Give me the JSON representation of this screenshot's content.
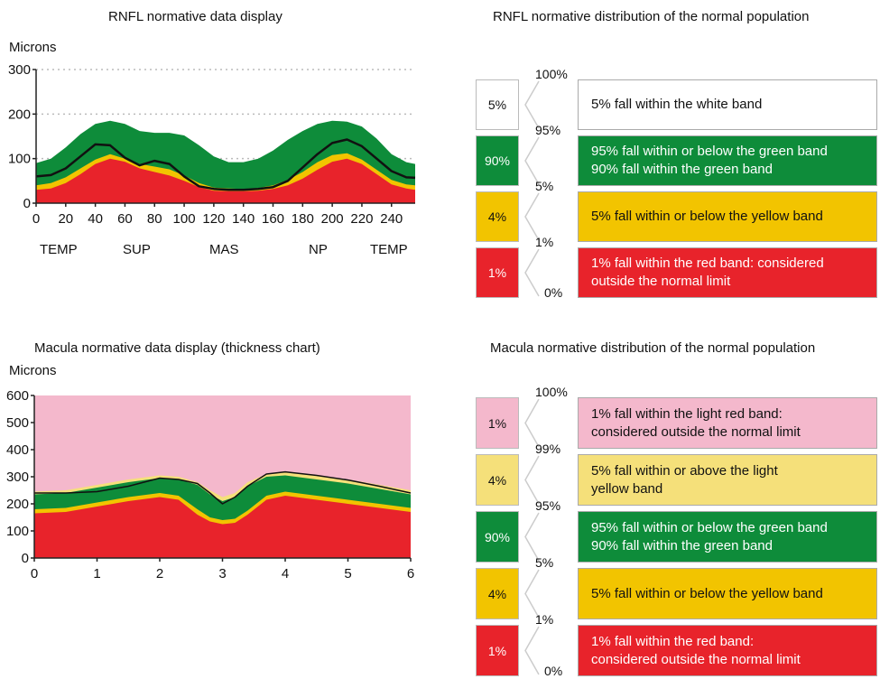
{
  "rnfl_chart": {
    "title": "RNFL normative data display",
    "ylabel": "Microns",
    "region_labels": [
      "TEMP",
      "SUP",
      "MAS",
      "NP",
      "TEMP"
    ]
  },
  "macula_chart": {
    "title": "Macula normative data display (thickness chart)",
    "ylabel": "Microns"
  },
  "rnfl_legend": {
    "title": "RNFL normative distribution of the normal population",
    "rows": [
      {
        "pct": "5%",
        "color": "#ffffff",
        "top": "100%",
        "lines": [
          "5% fall within the white band"
        ]
      },
      {
        "pct": "90%",
        "color": "#0e8c3a",
        "top": "95%",
        "lines": [
          "95% fall within or below the green band",
          "90% fall within the green band"
        ]
      },
      {
        "pct": "4%",
        "color": "#f2c400",
        "top": "5%",
        "lines": [
          "5% fall within or below the yellow band"
        ]
      },
      {
        "pct": "1%",
        "color": "#e8232b",
        "top": "1%",
        "lines": [
          "1% fall within the red band: considered",
          "outside the normal limit"
        ]
      }
    ],
    "bottom": "0%"
  },
  "macula_legend": {
    "title": "Macula normative distribution of the normal population",
    "rows": [
      {
        "pct": "1%",
        "color": "#f4b8cc",
        "top": "100%",
        "lines": [
          "1% fall within the light red band:",
          "considered outside the normal limit"
        ]
      },
      {
        "pct": "4%",
        "color": "#f5e07a",
        "top": "99%",
        "lines": [
          "5% fall within or above the light",
          "yellow band"
        ]
      },
      {
        "pct": "90%",
        "color": "#0e8c3a",
        "top": "95%",
        "lines": [
          "95% fall within or below the green band",
          "90% fall within the green band"
        ]
      },
      {
        "pct": "4%",
        "color": "#f2c400",
        "top": "5%",
        "lines": [
          "5% fall within or below the yellow band"
        ]
      },
      {
        "pct": "1%",
        "color": "#e8232b",
        "top": "1%",
        "lines": [
          "1% fall within the red band:",
          "considered outside the normal limit"
        ]
      }
    ],
    "bottom": "0%"
  },
  "chart_data": [
    {
      "type": "area",
      "title": "RNFL normative data display",
      "ylabel": "Microns",
      "xlabel": "",
      "xlim": [
        0,
        256
      ],
      "ylim": [
        0,
        300
      ],
      "xticks": [
        0,
        20,
        40,
        60,
        80,
        100,
        120,
        140,
        160,
        180,
        200,
        220,
        240
      ],
      "yticks": [
        0,
        100,
        200,
        300
      ],
      "grid": "horizontal dotted",
      "x": [
        0,
        10,
        20,
        30,
        40,
        50,
        60,
        70,
        80,
        90,
        100,
        110,
        120,
        130,
        140,
        150,
        160,
        170,
        180,
        190,
        200,
        210,
        220,
        230,
        240,
        250,
        256
      ],
      "series": [
        {
          "name": "red",
          "color": "#e8232b",
          "values": [
            30,
            33,
            45,
            65,
            88,
            100,
            93,
            78,
            70,
            62,
            50,
            36,
            28,
            27,
            27,
            28,
            32,
            40,
            55,
            75,
            93,
            100,
            88,
            65,
            42,
            33,
            30
          ]
        },
        {
          "name": "yellow",
          "color": "#f2c400",
          "values": [
            40,
            45,
            58,
            78,
            98,
            110,
            100,
            88,
            82,
            76,
            62,
            45,
            35,
            33,
            32,
            34,
            40,
            52,
            70,
            92,
            108,
            112,
            98,
            75,
            52,
            42,
            40
          ]
        },
        {
          "name": "green",
          "color": "#0e8c3a",
          "values": [
            90,
            100,
            125,
            155,
            178,
            185,
            178,
            162,
            158,
            158,
            152,
            130,
            105,
            92,
            92,
            100,
            118,
            142,
            162,
            178,
            185,
            183,
            172,
            145,
            110,
            92,
            88
          ]
        },
        {
          "name": "measured",
          "color": "#111111",
          "values": [
            60,
            63,
            78,
            105,
            132,
            130,
            102,
            85,
            95,
            88,
            60,
            38,
            32,
            30,
            30,
            32,
            36,
            50,
            80,
            110,
            135,
            143,
            128,
            100,
            72,
            58,
            57
          ]
        }
      ]
    },
    {
      "type": "area",
      "title": "Macula normative data display (thickness chart)",
      "ylabel": "Microns",
      "xlabel": "",
      "xlim": [
        0,
        6
      ],
      "ylim": [
        0,
        600
      ],
      "xticks": [
        0,
        1,
        2,
        3,
        4,
        5,
        6
      ],
      "yticks": [
        0,
        100,
        200,
        300,
        400,
        500,
        600
      ],
      "grid": "off",
      "x": [
        0,
        0.5,
        1,
        1.5,
        2,
        2.3,
        2.6,
        2.8,
        3.0,
        3.2,
        3.4,
        3.7,
        4,
        4.5,
        5,
        5.5,
        6
      ],
      "series": [
        {
          "name": "red",
          "color": "#e8232b",
          "values": [
            165,
            170,
            190,
            210,
            225,
            215,
            160,
            135,
            125,
            130,
            160,
            215,
            230,
            215,
            200,
            185,
            170
          ]
        },
        {
          "name": "yellow",
          "color": "#f2c400",
          "values": [
            180,
            185,
            205,
            225,
            240,
            230,
            180,
            150,
            140,
            145,
            175,
            230,
            245,
            230,
            215,
            200,
            185
          ]
        },
        {
          "name": "green",
          "color": "#0e8c3a",
          "values": [
            235,
            240,
            260,
            280,
            295,
            290,
            270,
            235,
            210,
            225,
            265,
            300,
            305,
            290,
            275,
            255,
            235
          ]
        },
        {
          "name": "light-yellow",
          "color": "#f5e07a",
          "values": [
            245,
            250,
            270,
            290,
            305,
            300,
            280,
            250,
            225,
            240,
            280,
            310,
            320,
            305,
            290,
            270,
            250
          ]
        },
        {
          "name": "light-red",
          "color": "#f4b8cc",
          "values": [
            600,
            600,
            600,
            600,
            600,
            600,
            600,
            600,
            600,
            600,
            600,
            600,
            600,
            600,
            600,
            600,
            600
          ]
        },
        {
          "name": "measured",
          "color": "#111111",
          "values": [
            240,
            240,
            245,
            265,
            295,
            290,
            275,
            240,
            200,
            225,
            265,
            310,
            318,
            305,
            288,
            265,
            240
          ]
        }
      ]
    }
  ]
}
